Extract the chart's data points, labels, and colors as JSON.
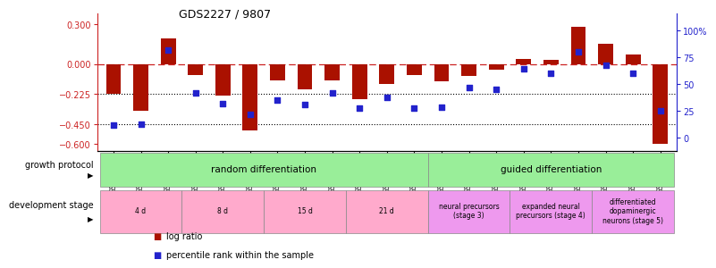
{
  "title": "GDS2227 / 9807",
  "samples": [
    "GSM80289",
    "GSM80290",
    "GSM80291",
    "GSM80292",
    "GSM80293",
    "GSM80294",
    "GSM80295",
    "GSM80296",
    "GSM80297",
    "GSM80298",
    "GSM80299",
    "GSM80300",
    "GSM80482",
    "GSM80483",
    "GSM80484",
    "GSM80485",
    "GSM80486",
    "GSM80487",
    "GSM80488",
    "GSM80489",
    "GSM80490"
  ],
  "log_ratio": [
    -0.22,
    -0.35,
    0.19,
    -0.08,
    -0.235,
    -0.5,
    -0.12,
    -0.19,
    -0.12,
    -0.26,
    -0.15,
    -0.08,
    -0.13,
    -0.09,
    -0.04,
    0.04,
    0.03,
    0.28,
    0.15,
    0.07,
    -0.6
  ],
  "percentile": [
    12,
    13,
    82,
    42,
    32,
    22,
    35,
    31,
    42,
    28,
    38,
    28,
    29,
    47,
    45,
    64,
    60,
    80,
    68,
    60,
    25
  ],
  "bar_color": "#aa1100",
  "scatter_color": "#2222cc",
  "ylim_left": [
    -0.65,
    0.38
  ],
  "ylim_right": [
    -12,
    116
  ],
  "yticks_left": [
    0.3,
    0.0,
    -0.225,
    -0.45,
    -0.6
  ],
  "yticks_right": [
    100,
    75,
    50,
    25,
    0
  ],
  "hline_zero_color": "#cc2222",
  "hline_dotted_values": [
    -0.225,
    -0.45
  ],
  "growth_protocol": [
    {
      "text": "random differentiation",
      "start": 0,
      "end": 11,
      "color": "#99ee99"
    },
    {
      "text": "guided differentiation",
      "start": 12,
      "end": 20,
      "color": "#99ee99"
    }
  ],
  "dev_stages": [
    {
      "text": "4 d",
      "start": 0,
      "end": 2,
      "color": "#ffaacc"
    },
    {
      "text": "8 d",
      "start": 3,
      "end": 5,
      "color": "#ffaacc"
    },
    {
      "text": "15 d",
      "start": 6,
      "end": 8,
      "color": "#ffaacc"
    },
    {
      "text": "21 d",
      "start": 9,
      "end": 11,
      "color": "#ffaacc"
    },
    {
      "text": "neural precursors\n(stage 3)",
      "start": 12,
      "end": 14,
      "color": "#ee99ee"
    },
    {
      "text": "expanded neural\nprecursors (stage 4)",
      "start": 15,
      "end": 17,
      "color": "#ee99ee"
    },
    {
      "text": "differentiated\ndopaminergic\nneurons (stage 5)",
      "start": 18,
      "end": 20,
      "color": "#ee99ee"
    }
  ],
  "background_color": "#ffffff"
}
